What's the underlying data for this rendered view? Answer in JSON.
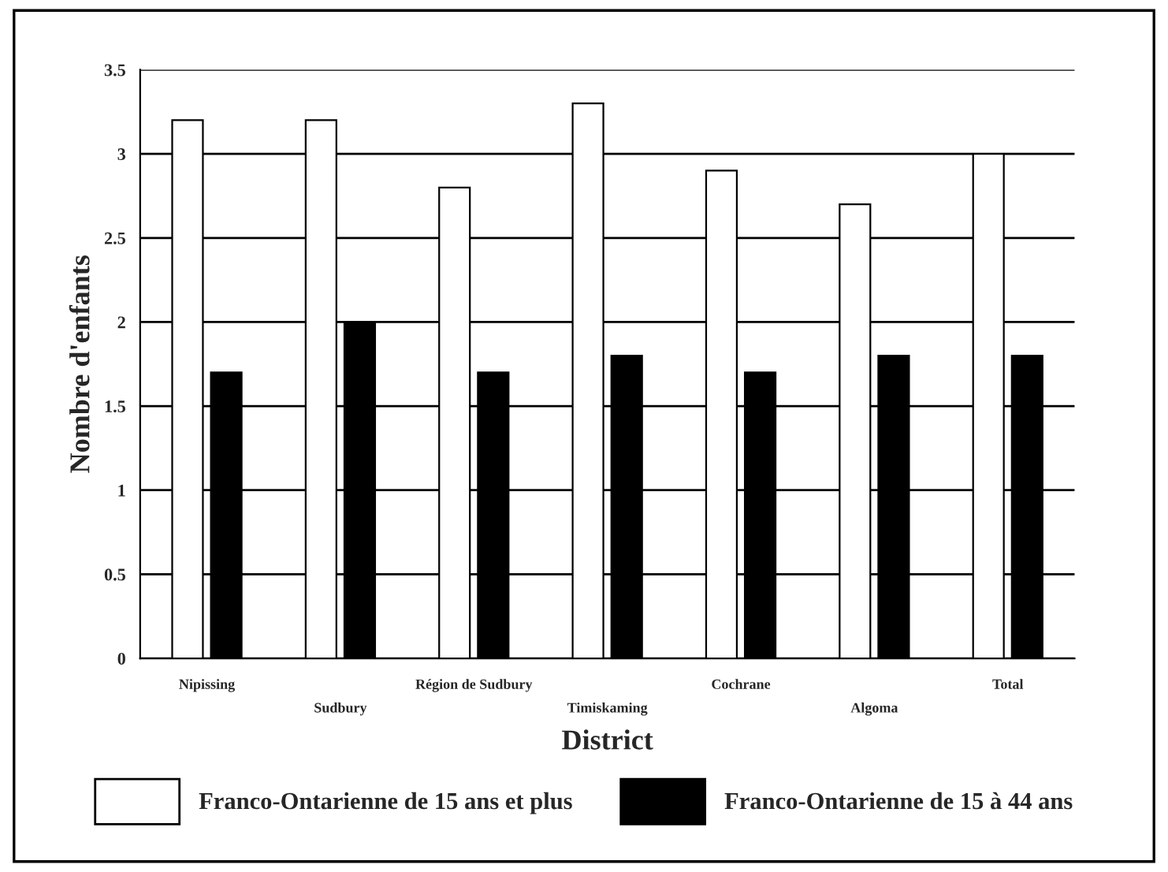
{
  "chart_data": {
    "type": "bar",
    "xlabel": "District",
    "ylabel": "Nombre d'enfants",
    "categories": [
      "Nipissing",
      "Sudbury",
      "Région de Sudbury",
      "Timiskaming",
      "Cochrane",
      "Algoma",
      "Total"
    ],
    "series": [
      {
        "name": "Franco-Ontarienne de 15 ans et plus",
        "color": "#ffffff",
        "values": [
          3.2,
          3.2,
          2.8,
          3.3,
          2.9,
          2.7,
          3.0
        ]
      },
      {
        "name": "Franco-Ontarienne de 15 à 44 ans",
        "color": "#000000",
        "values": [
          1.7,
          2.0,
          1.7,
          1.8,
          1.7,
          1.8,
          1.8
        ]
      }
    ],
    "ylim": [
      0,
      3.5
    ],
    "yticks": [
      0,
      {
        "value": 0.5,
        "label": "0.5"
      },
      1,
      {
        "value": 1.5,
        "label": "1.5"
      },
      2,
      {
        "value": 2.5,
        "label": "2.5"
      },
      3,
      {
        "value": 3.5,
        "label": "3.5"
      }
    ],
    "grid": "y",
    "legend": "bottom"
  }
}
